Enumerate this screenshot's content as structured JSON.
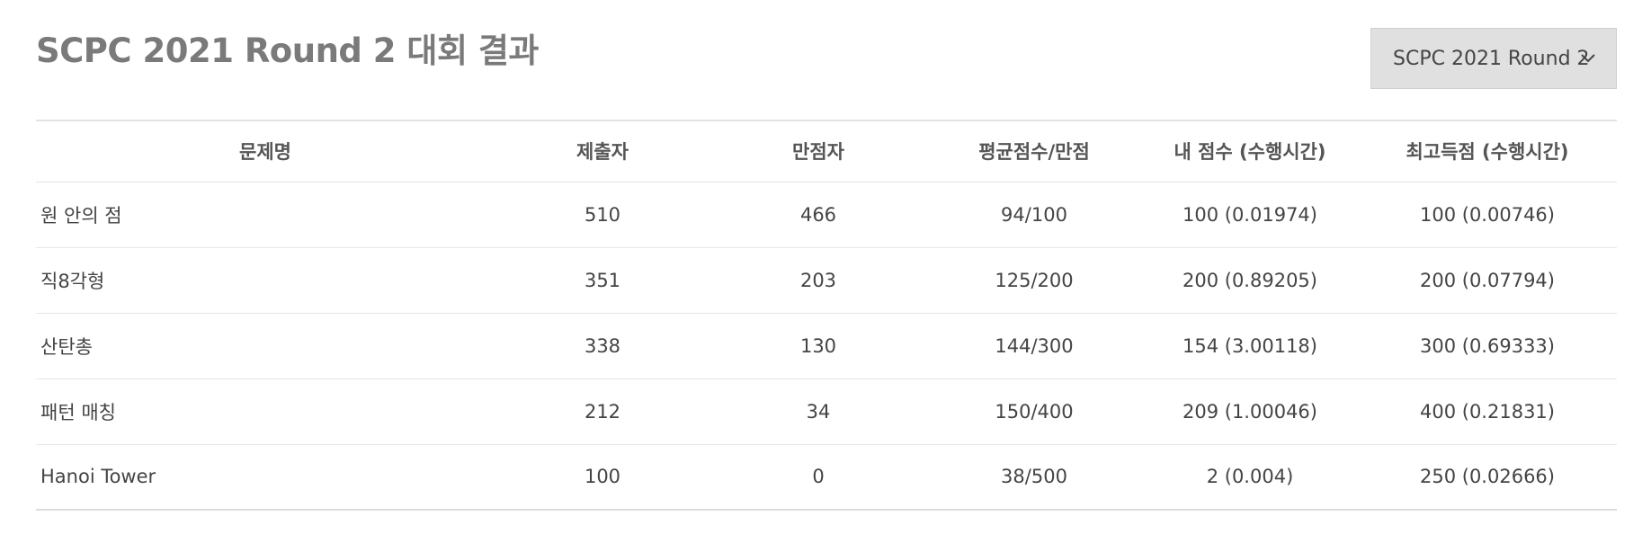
{
  "page": {
    "title": "SCPC 2021 Round 2 대회 결과"
  },
  "round_select": {
    "selected": "SCPC 2021 Round 2",
    "icon": "chevron-down-icon"
  },
  "table": {
    "headers": {
      "problem": "문제명",
      "submitters": "제출자",
      "full_scorers": "만점자",
      "avg_max": "평균점수/만점",
      "my_score": "내 점수 (수행시간)",
      "best_score": "최고득점 (수행시간)"
    },
    "rows": [
      {
        "problem": "원 안의 점",
        "submitters": "510",
        "full_scorers": "466",
        "avg_max": "94/100",
        "my_score": "100 (0.01974)",
        "best_score": "100 (0.00746)"
      },
      {
        "problem": "직8각형",
        "submitters": "351",
        "full_scorers": "203",
        "avg_max": "125/200",
        "my_score": "200 (0.89205)",
        "best_score": "200 (0.07794)"
      },
      {
        "problem": "산탄총",
        "submitters": "338",
        "full_scorers": "130",
        "avg_max": "144/300",
        "my_score": "154 (3.00118)",
        "best_score": "300 (0.69333)"
      },
      {
        "problem": "패턴 매칭",
        "submitters": "212",
        "full_scorers": "34",
        "avg_max": "150/400",
        "my_score": "209 (1.00046)",
        "best_score": "400 (0.21831)"
      },
      {
        "problem": "Hanoi Tower",
        "submitters": "100",
        "full_scorers": "0",
        "avg_max": "38/500",
        "my_score": "2 (0.004)",
        "best_score": "250 (0.02666)"
      }
    ]
  }
}
